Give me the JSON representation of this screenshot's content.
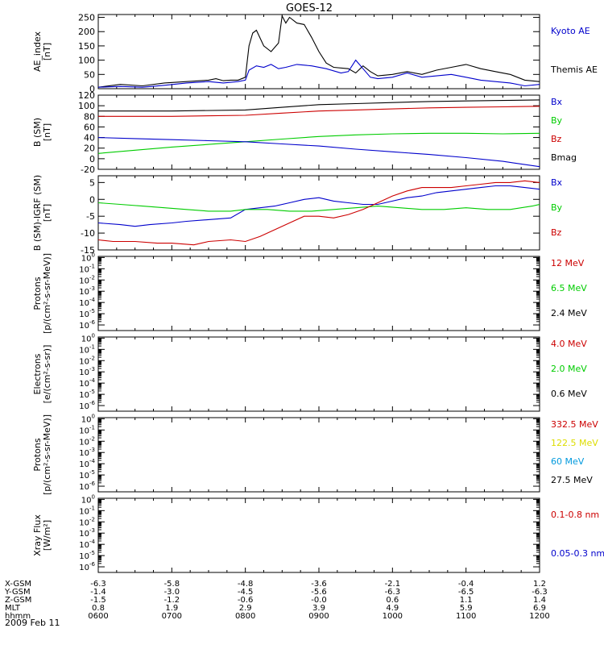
{
  "figure": {
    "title": "GOES-12",
    "date": "2009 Feb 11"
  },
  "colors": {
    "black": "#000000",
    "blue": "#0000cc",
    "red": "#cc0000",
    "green": "#00cc00",
    "yellow": "#dddd00",
    "cyan": "#0099dd"
  },
  "chart_data": [
    {
      "type": "line",
      "ylabel": [
        "AE_index",
        "[nT]"
      ],
      "ylim": [
        0,
        260
      ],
      "yticks": [
        0,
        50,
        100,
        150,
        200,
        250
      ],
      "legend": [
        {
          "label": "Kyoto AE",
          "color": "#0000cc"
        },
        {
          "label": "Themis AE",
          "color": "#000000"
        }
      ],
      "series": [
        {
          "name": "Themis AE",
          "color": "#000000",
          "x": [
            6.0,
            6.3,
            6.6,
            6.9,
            7.2,
            7.5,
            7.6,
            7.7,
            7.8,
            7.9,
            8.0,
            8.05,
            8.1,
            8.15,
            8.25,
            8.35,
            8.45,
            8.5,
            8.55,
            8.6,
            8.7,
            8.8,
            8.9,
            9.0,
            9.1,
            9.2,
            9.4,
            9.5,
            9.6,
            9.7,
            9.8,
            10.0,
            10.2,
            10.4,
            10.6,
            10.8,
            11.0,
            11.2,
            11.4,
            11.6,
            11.8,
            12.0
          ],
          "y": [
            5,
            15,
            10,
            20,
            25,
            30,
            35,
            28,
            30,
            30,
            40,
            150,
            195,
            205,
            150,
            130,
            160,
            255,
            230,
            250,
            230,
            225,
            180,
            130,
            90,
            75,
            70,
            55,
            80,
            60,
            45,
            50,
            60,
            50,
            65,
            75,
            85,
            70,
            60,
            50,
            30,
            25
          ]
        },
        {
          "name": "Kyoto AE",
          "color": "#0000cc",
          "x": [
            6.0,
            6.3,
            6.6,
            6.9,
            7.2,
            7.5,
            7.7,
            7.9,
            8.0,
            8.05,
            8.15,
            8.25,
            8.35,
            8.45,
            8.55,
            8.7,
            8.9,
            9.1,
            9.3,
            9.4,
            9.5,
            9.6,
            9.7,
            9.8,
            10.0,
            10.2,
            10.4,
            10.6,
            10.8,
            11.0,
            11.2,
            11.4,
            11.6,
            11.8,
            12.0
          ],
          "y": [
            5,
            8,
            5,
            12,
            20,
            25,
            20,
            25,
            30,
            65,
            80,
            75,
            85,
            70,
            75,
            85,
            80,
            70,
            55,
            60,
            100,
            70,
            40,
            35,
            40,
            55,
            40,
            45,
            50,
            40,
            30,
            25,
            20,
            10,
            15
          ]
        }
      ]
    },
    {
      "type": "line",
      "ylabel": [
        "B (SM)",
        "[nT]"
      ],
      "ylim": [
        -20,
        120
      ],
      "yticks": [
        -20,
        0,
        20,
        40,
        60,
        80,
        100,
        120
      ],
      "legend": [
        {
          "label": "Bx",
          "color": "#0000cc"
        },
        {
          "label": "By",
          "color": "#00cc00"
        },
        {
          "label": "Bz",
          "color": "#cc0000"
        },
        {
          "label": "Bmag",
          "color": "#000000"
        }
      ],
      "series": [
        {
          "name": "Bmag",
          "color": "#000000",
          "x": [
            6.0,
            7.0,
            8.0,
            8.5,
            9.0,
            9.5,
            10.0,
            10.5,
            11.0,
            11.5,
            12.0
          ],
          "y": [
            90,
            90,
            92,
            97,
            102,
            104,
            106,
            108,
            109,
            110,
            111
          ]
        },
        {
          "name": "Bz",
          "color": "#cc0000",
          "x": [
            6.0,
            7.0,
            8.0,
            8.5,
            9.0,
            9.5,
            10.0,
            10.5,
            11.0,
            11.5,
            12.0
          ],
          "y": [
            80,
            80,
            82,
            86,
            90,
            92,
            94,
            96,
            97,
            98,
            99
          ]
        },
        {
          "name": "By",
          "color": "#00cc00",
          "x": [
            6.0,
            6.5,
            7.0,
            7.5,
            8.0,
            8.5,
            9.0,
            9.5,
            10.0,
            10.5,
            11.0,
            11.5,
            12.0
          ],
          "y": [
            10,
            16,
            22,
            27,
            32,
            37,
            42,
            45,
            47,
            48,
            48,
            47,
            48
          ]
        },
        {
          "name": "Bx",
          "color": "#0000cc",
          "x": [
            6.0,
            6.5,
            7.0,
            7.5,
            8.0,
            8.5,
            9.0,
            9.5,
            10.0,
            10.5,
            11.0,
            11.5,
            12.0
          ],
          "y": [
            40,
            38,
            36,
            34,
            32,
            28,
            24,
            18,
            13,
            8,
            2,
            -5,
            -15
          ]
        }
      ]
    },
    {
      "type": "line",
      "ylabel": [
        "B (SM)-IGRF (SM)",
        "[nT]"
      ],
      "ylim": [
        -15,
        7
      ],
      "yticks": [
        -15,
        -10,
        -5,
        0,
        5
      ],
      "legend": [
        {
          "label": "Bx",
          "color": "#0000cc"
        },
        {
          "label": "By",
          "color": "#00cc00"
        },
        {
          "label": "Bz",
          "color": "#cc0000"
        }
      ],
      "series": [
        {
          "name": "Bx",
          "color": "#0000cc",
          "x": [
            6.0,
            6.3,
            6.5,
            6.7,
            7.0,
            7.2,
            7.5,
            7.8,
            8.0,
            8.2,
            8.4,
            8.6,
            8.8,
            9.0,
            9.2,
            9.4,
            9.6,
            9.8,
            10.0,
            10.2,
            10.4,
            10.6,
            10.8,
            11.0,
            11.2,
            11.4,
            11.6,
            11.8,
            12.0
          ],
          "y": [
            -7,
            -7.5,
            -8,
            -7.5,
            -7,
            -6.5,
            -6,
            -5.5,
            -3,
            -2.5,
            -2,
            -1,
            0,
            0.5,
            -0.5,
            -1,
            -1.5,
            -1.5,
            -0.5,
            0.5,
            1,
            2,
            2.5,
            3,
            3.5,
            4,
            4,
            3.5,
            3
          ]
        },
        {
          "name": "By",
          "color": "#00cc00",
          "x": [
            6.0,
            6.3,
            6.6,
            6.9,
            7.2,
            7.5,
            7.8,
            8.0,
            8.3,
            8.6,
            8.9,
            9.2,
            9.5,
            9.8,
            10.1,
            10.4,
            10.7,
            11.0,
            11.3,
            11.6,
            11.9,
            12.0
          ],
          "y": [
            -1,
            -1.5,
            -2,
            -2.5,
            -3,
            -3.5,
            -3.5,
            -3,
            -3,
            -3.5,
            -3.5,
            -3,
            -2.5,
            -2,
            -2.5,
            -3,
            -3,
            -2.5,
            -3,
            -3,
            -2,
            -1.5
          ]
        },
        {
          "name": "Bz",
          "color": "#cc0000",
          "x": [
            6.0,
            6.2,
            6.5,
            6.8,
            7.0,
            7.3,
            7.5,
            7.8,
            8.0,
            8.2,
            8.4,
            8.6,
            8.8,
            9.0,
            9.2,
            9.4,
            9.6,
            9.8,
            10.0,
            10.2,
            10.4,
            10.6,
            10.8,
            11.0,
            11.2,
            11.4,
            11.6,
            11.8,
            12.0
          ],
          "y": [
            -12,
            -12.5,
            -12.5,
            -13,
            -13,
            -13.5,
            -12.5,
            -12,
            -12.5,
            -11,
            -9,
            -7,
            -5,
            -5,
            -5.5,
            -4.5,
            -3,
            -1,
            1,
            2.5,
            3.5,
            3.5,
            3.5,
            4,
            4.5,
            5,
            5,
            5.5,
            5
          ]
        }
      ]
    },
    {
      "type": "line",
      "ylabel": [
        "Protons",
        "[p/(cm²-s-sr-MeV)]"
      ],
      "yscale": "log",
      "yticks_exp": [
        -6,
        -5,
        -4,
        -3,
        -2,
        -1,
        0
      ],
      "legend": [
        {
          "label": "12 MeV",
          "color": "#cc0000"
        },
        {
          "label": "6.5 MeV",
          "color": "#00cc00"
        },
        {
          "label": "2.4 MeV",
          "color": "#000000"
        }
      ],
      "series": []
    },
    {
      "type": "line",
      "ylabel": [
        "Electrons",
        "[e/(cm²-s-sr)]"
      ],
      "yscale": "log",
      "yticks_exp": [
        -6,
        -5,
        -4,
        -3,
        -2,
        -1,
        0
      ],
      "legend": [
        {
          "label": "4.0 MeV",
          "color": "#cc0000"
        },
        {
          "label": "2.0 MeV",
          "color": "#00cc00"
        },
        {
          "label": "0.6 MeV",
          "color": "#000000"
        }
      ],
      "series": []
    },
    {
      "type": "line",
      "ylabel": [
        "Protons",
        "[p/(cm²-s-sr-MeV)]"
      ],
      "yscale": "log",
      "yticks_exp": [
        -6,
        -5,
        -4,
        -3,
        -2,
        -1,
        0
      ],
      "legend": [
        {
          "label": "332.5 MeV",
          "color": "#cc0000"
        },
        {
          "label": "122.5 MeV",
          "color": "#dddd00"
        },
        {
          "label": "60 MeV",
          "color": "#0099dd"
        },
        {
          "label": "27.5 MeV",
          "color": "#000000"
        }
      ],
      "series": []
    },
    {
      "type": "line",
      "ylabel": [
        "Xray Flux",
        "[W/m²]"
      ],
      "yscale": "log",
      "yticks_exp": [
        -6,
        -5,
        -4,
        -3,
        -2,
        -1,
        0
      ],
      "legend": [
        {
          "label": "0.1-0.8 nm",
          "color": "#cc0000"
        },
        {
          "label": "0.05-0.3 nm",
          "color": "#0000cc"
        }
      ],
      "series": []
    }
  ],
  "axis": {
    "xlim": [
      6,
      12
    ],
    "row_labels": [
      "X-GSM",
      "Y-GSM",
      "Z-GSM",
      "MLT",
      "hhmm"
    ],
    "columns": [
      {
        "x": 6,
        "values": [
          "-6.3",
          "-1.4",
          "-1.5",
          "0.8",
          "0600"
        ]
      },
      {
        "x": 7,
        "values": [
          "-5.8",
          "-3.0",
          "-1.2",
          "1.9",
          "0700"
        ]
      },
      {
        "x": 8,
        "values": [
          "-4.8",
          "-4.5",
          "-0.6",
          "2.9",
          "0800"
        ]
      },
      {
        "x": 9,
        "values": [
          "-3.6",
          "-5.6",
          "-0.0",
          "3.9",
          "0900"
        ]
      },
      {
        "x": 10,
        "values": [
          "-2.1",
          "-6.3",
          "0.6",
          "4.9",
          "1000"
        ]
      },
      {
        "x": 11,
        "values": [
          "-0.4",
          "-6.5",
          "1.1",
          "5.9",
          "1100"
        ]
      },
      {
        "x": 12,
        "values": [
          "1.2",
          "-6.3",
          "1.4",
          "6.9",
          "1200"
        ]
      }
    ]
  }
}
